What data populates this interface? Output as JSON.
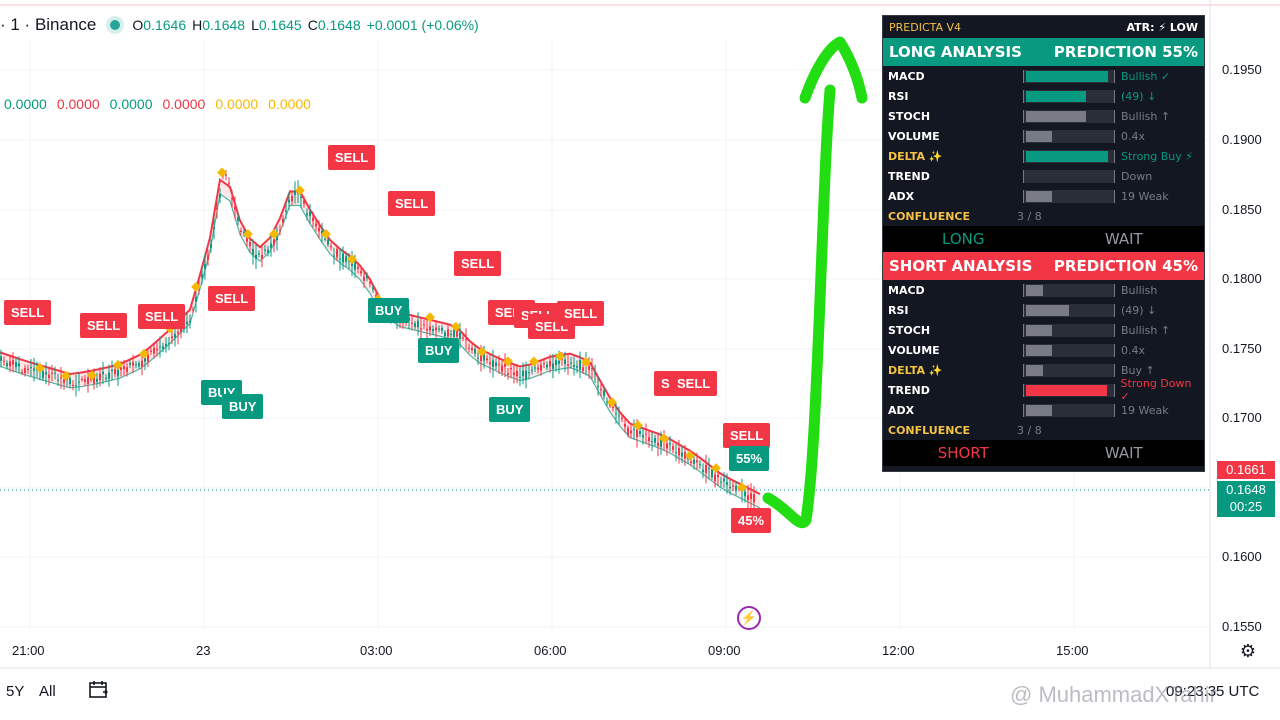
{
  "header": {
    "symbol_suffix": "· 1 · Binance",
    "ohlc": [
      {
        "k": "O",
        "v": "0.1646"
      },
      {
        "k": "H",
        "v": "0.1648"
      },
      {
        "k": "L",
        "v": "0.1645"
      },
      {
        "k": "C",
        "v": "0.1648"
      }
    ],
    "change": "+0.0001 (+0.06%)"
  },
  "indicator_values": [
    {
      "v": "0.0000",
      "color": "#089981"
    },
    {
      "v": "0.0000",
      "color": "#f23645"
    },
    {
      "v": "0.0000",
      "color": "#089981"
    },
    {
      "v": "0.0000",
      "color": "#f23645"
    },
    {
      "v": "0.0000",
      "color": "#f5b800"
    },
    {
      "v": "0.0000",
      "color": "#f5b800"
    }
  ],
  "panel": {
    "title": "PREDICTA V4",
    "atr": "ATR: ⚡ LOW",
    "long": {
      "heading": "LONG ANALYSIS",
      "prediction": "PREDICTION 55%",
      "rows": [
        {
          "label": "MACD",
          "fill": 0.95,
          "color": "green",
          "text": "Bullish ✓",
          "tcolor": "green"
        },
        {
          "label": "RSI",
          "fill": 0.7,
          "color": "green",
          "text": "(49) ↓",
          "tcolor": "green"
        },
        {
          "label": "STOCH",
          "fill": 0.7,
          "color": "grey",
          "text": "Bullish ↑",
          "tcolor": "grey"
        },
        {
          "label": "VOLUME",
          "fill": 0.3,
          "color": "grey",
          "text": "0.4x",
          "tcolor": "grey"
        },
        {
          "label": "DELTA ✨",
          "fill": 0.95,
          "color": "green",
          "text": "Strong Buy ⚡",
          "tcolor": "green",
          "gold": true
        },
        {
          "label": "TREND",
          "fill": 0,
          "color": "grey",
          "text": "Down",
          "tcolor": "grey"
        },
        {
          "label": "ADX",
          "fill": 0.3,
          "color": "grey",
          "text": "19 Weak",
          "tcolor": "grey"
        }
      ],
      "confluence_label": "CONFLUENCE",
      "confluence": "3 / 8",
      "direction": "LONG",
      "status": "WAIT"
    },
    "short": {
      "heading": "SHORT ANALYSIS",
      "prediction": "PREDICTION 45%",
      "rows": [
        {
          "label": "MACD",
          "fill": 0.2,
          "color": "grey",
          "text": "Bullish",
          "tcolor": "grey"
        },
        {
          "label": "RSI",
          "fill": 0.5,
          "color": "grey",
          "text": "(49) ↓",
          "tcolor": "grey"
        },
        {
          "label": "STOCH",
          "fill": 0.3,
          "color": "grey",
          "text": "Bullish ↑",
          "tcolor": "grey"
        },
        {
          "label": "VOLUME",
          "fill": 0.3,
          "color": "grey",
          "text": "0.4x",
          "tcolor": "grey"
        },
        {
          "label": "DELTA ✨",
          "fill": 0.2,
          "color": "grey",
          "text": "Buy ↑",
          "tcolor": "grey",
          "gold": true
        },
        {
          "label": "TREND",
          "fill": 0.95,
          "color": "red",
          "text": "Strong Down ✓",
          "tcolor": "red"
        },
        {
          "label": "ADX",
          "fill": 0.3,
          "color": "grey",
          "text": "19 Weak",
          "tcolor": "grey"
        }
      ],
      "confluence_label": "CONFLUENCE",
      "confluence": "3 / 8",
      "direction": "SHORT",
      "status": "WAIT"
    }
  },
  "price_axis": {
    "labels": [
      "0.1950",
      "0.1900",
      "0.1850",
      "0.1800",
      "0.1750",
      "0.1700",
      "0.1650",
      "0.1600",
      "0.1550"
    ],
    "tag_high": "0.1661",
    "tag_current": "0.1648",
    "countdown": "00:25"
  },
  "time_axis": [
    "21:00",
    "23",
    "03:00",
    "06:00",
    "09:00",
    "12:00",
    "15:00"
  ],
  "bottom_bar": {
    "range_5y": "5Y",
    "range_all": "All",
    "clock": "09:23:35 UTC"
  },
  "signals": {
    "sell": "SELL",
    "buy": "BUY",
    "pred_long": "55%",
    "pred_short": "45%"
  },
  "watermark": "@ MuhammadXTahir",
  "colors": {
    "bull": "#089981",
    "bear": "#f23645",
    "gold": "#f5b800",
    "arrow": "#22dd11"
  },
  "chart_data": {
    "type": "line",
    "x_labels": [
      "21:00",
      "23",
      "03:00",
      "06:00",
      "09:00",
      "12:00",
      "15:00"
    ],
    "ylim": [
      0.154,
      0.198
    ],
    "price": [
      [
        0,
        0.1751
      ],
      [
        0.25,
        0.1745
      ],
      [
        0.5,
        0.174
      ],
      [
        0.75,
        0.1735
      ],
      [
        1.0,
        0.1738
      ],
      [
        1.25,
        0.1742
      ],
      [
        1.5,
        0.175
      ],
      [
        1.75,
        0.1765
      ],
      [
        2.0,
        0.1782
      ],
      [
        2.2,
        0.183
      ],
      [
        2.35,
        0.189
      ],
      [
        2.5,
        0.185
      ],
      [
        2.7,
        0.1825
      ],
      [
        2.9,
        0.1838
      ],
      [
        3.0,
        0.186
      ],
      [
        3.1,
        0.1875
      ],
      [
        3.3,
        0.185
      ],
      [
        3.5,
        0.183
      ],
      [
        3.7,
        0.182
      ],
      [
        3.85,
        0.181
      ],
      [
        4.0,
        0.179
      ],
      [
        4.2,
        0.178
      ],
      [
        4.5,
        0.1775
      ],
      [
        4.8,
        0.177
      ],
      [
        5.0,
        0.1755
      ],
      [
        5.3,
        0.1745
      ],
      [
        5.5,
        0.174
      ],
      [
        5.8,
        0.1748
      ],
      [
        6.0,
        0.175
      ],
      [
        6.2,
        0.1745
      ],
      [
        6.4,
        0.172
      ],
      [
        6.6,
        0.17
      ],
      [
        6.8,
        0.1695
      ],
      [
        7.0,
        0.169
      ],
      [
        7.3,
        0.1678
      ],
      [
        7.6,
        0.1662
      ],
      [
        7.8,
        0.1655
      ],
      [
        8.0,
        0.1648
      ]
    ],
    "prediction_long_pct": 55,
    "prediction_short_pct": 45
  }
}
